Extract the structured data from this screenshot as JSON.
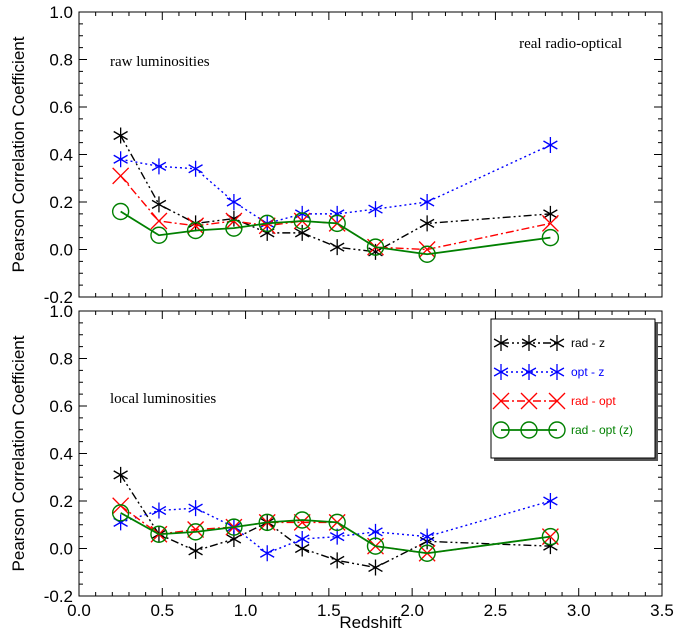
{
  "chart_data": [
    {
      "type": "line",
      "panel": "top",
      "annotations": [
        "raw luminosities",
        "real radio-optical"
      ],
      "ylabel": "Pearson Correlation Coefficient",
      "xlim": [
        0.0,
        3.5
      ],
      "ylim": [
        -0.2,
        1.0
      ],
      "yticks": [
        "-0.2",
        "0.0",
        "0.2",
        "0.4",
        "0.6",
        "0.8",
        "1.0"
      ],
      "x": [
        0.25,
        0.48,
        0.7,
        0.93,
        1.13,
        1.34,
        1.55,
        1.78,
        2.09,
        2.83
      ],
      "series": [
        {
          "name": "rad - z",
          "color": "#000000",
          "marker": "star",
          "line": "dashdotdot",
          "values": [
            0.48,
            0.19,
            0.11,
            0.13,
            0.07,
            0.07,
            0.01,
            -0.01,
            0.11,
            0.15
          ]
        },
        {
          "name": "opt - z",
          "color": "#0000ff",
          "marker": "star",
          "line": "dotted",
          "values": [
            0.38,
            0.35,
            0.34,
            0.2,
            0.11,
            0.15,
            0.15,
            0.17,
            0.2,
            0.44
          ]
        },
        {
          "name": "rad - opt",
          "color": "#ff0000",
          "marker": "x",
          "line": "dashdot",
          "values": [
            0.31,
            0.12,
            0.1,
            0.12,
            0.1,
            0.12,
            0.11,
            0.01,
            0.0,
            0.11
          ]
        },
        {
          "name": "rad - opt (z)",
          "color": "#008000",
          "marker": "circle",
          "line": "solid",
          "values": [
            0.16,
            0.06,
            0.08,
            0.09,
            0.11,
            0.12,
            0.11,
            0.01,
            -0.02,
            0.05
          ]
        }
      ]
    },
    {
      "type": "line",
      "panel": "bottom",
      "annotations": [
        "local luminosities"
      ],
      "ylabel": "Pearson Correlation Coefficient",
      "xlabel": "Redshift",
      "xlim": [
        0.0,
        3.5
      ],
      "ylim": [
        -0.2,
        1.0
      ],
      "xticks": [
        "0.0",
        "0.5",
        "1.0",
        "1.5",
        "2.0",
        "2.5",
        "3.0",
        "3.5"
      ],
      "yticks": [
        "-0.2",
        "0.0",
        "0.2",
        "0.4",
        "0.6",
        "0.8",
        "1.0"
      ],
      "legend_position": "top-right",
      "x": [
        0.25,
        0.48,
        0.7,
        0.93,
        1.13,
        1.34,
        1.55,
        1.78,
        2.09,
        2.83
      ],
      "series": [
        {
          "name": "rad - z",
          "color": "#000000",
          "marker": "star",
          "line": "dashdotdot",
          "values": [
            0.31,
            0.06,
            -0.01,
            0.04,
            0.11,
            0.0,
            -0.05,
            -0.08,
            0.03,
            0.01
          ]
        },
        {
          "name": "opt - z",
          "color": "#0000ff",
          "marker": "star",
          "line": "dotted",
          "values": [
            0.11,
            0.16,
            0.17,
            0.09,
            -0.02,
            0.04,
            0.05,
            0.07,
            0.05,
            0.2
          ]
        },
        {
          "name": "rad - opt",
          "color": "#ff0000",
          "marker": "x",
          "line": "dashdot",
          "values": [
            0.18,
            0.06,
            0.08,
            0.09,
            0.11,
            0.11,
            0.11,
            0.01,
            -0.02,
            0.05
          ]
        },
        {
          "name": "rad - opt (z)",
          "color": "#008000",
          "marker": "circle",
          "line": "solid",
          "values": [
            0.15,
            0.06,
            0.07,
            0.09,
            0.11,
            0.12,
            0.11,
            0.01,
            -0.02,
            0.05
          ]
        }
      ]
    }
  ]
}
